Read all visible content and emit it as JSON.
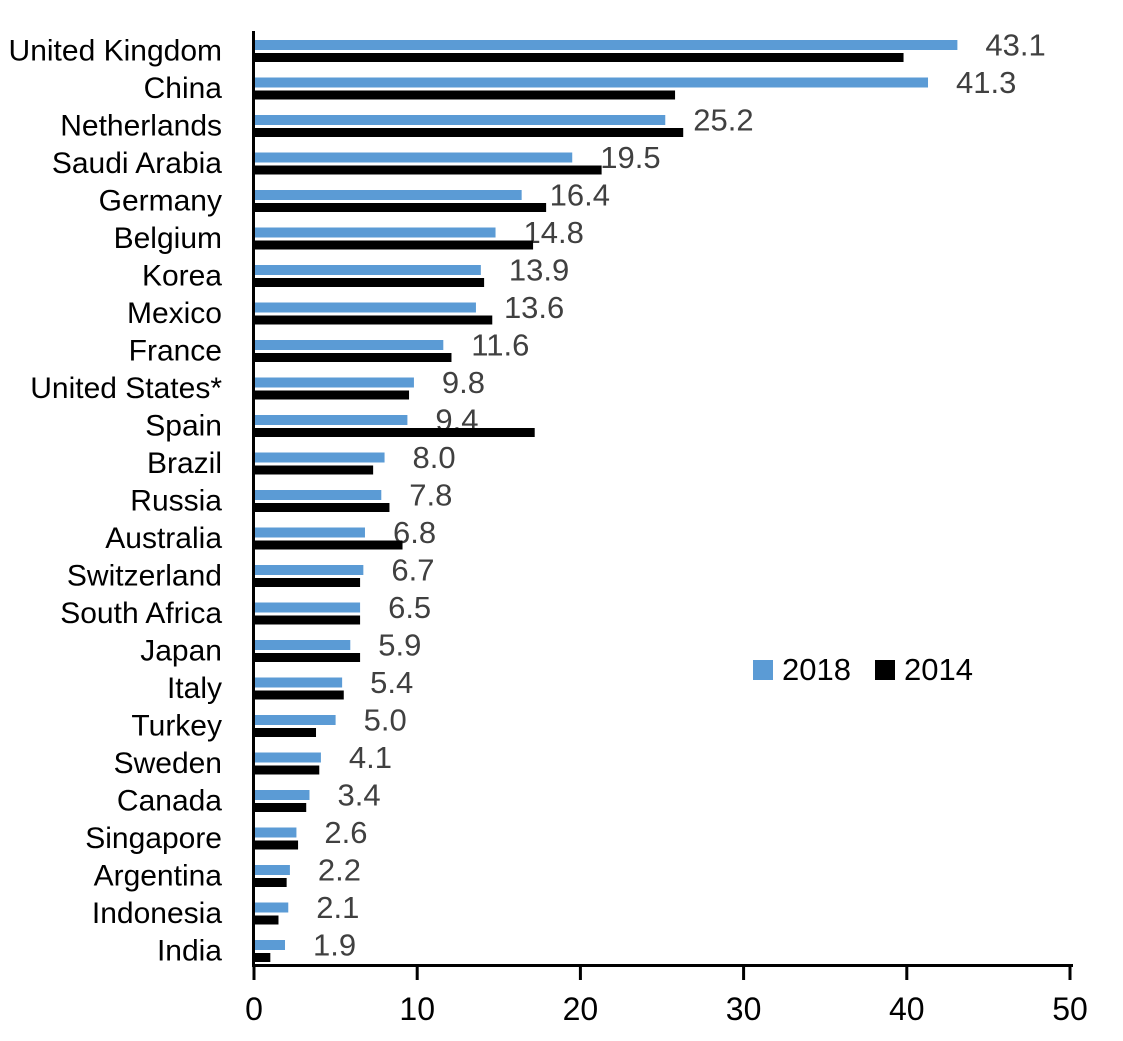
{
  "chart_data": {
    "type": "bar",
    "orientation": "horizontal",
    "title": "",
    "xlabel": "",
    "ylabel": "",
    "categories": [
      "United Kingdom",
      "China",
      "Netherlands",
      "Saudi Arabia",
      "Germany",
      "Belgium",
      "Korea",
      "Mexico",
      "France",
      "United States*",
      "Spain",
      "Brazil",
      "Russia",
      "Australia",
      "Switzerland",
      "South Africa",
      "Japan",
      "Italy",
      "Turkey",
      "Sweden",
      "Canada",
      "Singapore",
      "Argentina",
      "Indonesia",
      "India"
    ],
    "series": [
      {
        "name": "2018",
        "color": "#5B9BD5",
        "values": [
          43.1,
          41.3,
          25.2,
          19.5,
          16.4,
          14.8,
          13.9,
          13.6,
          11.6,
          9.8,
          9.4,
          8.0,
          7.8,
          6.8,
          6.7,
          6.5,
          5.9,
          5.4,
          5.0,
          4.1,
          3.4,
          2.6,
          2.2,
          2.1,
          1.9
        ],
        "data_labels": [
          "43.1",
          "41.3",
          "25.2",
          "19.5",
          "16.4",
          "14.8",
          "13.9",
          "13.6",
          "11.6",
          "9.8",
          "9.4",
          "8.0",
          "7.8",
          "6.8",
          "6.7",
          "6.5",
          "5.9",
          "5.4",
          "5.0",
          "4.1",
          "3.4",
          "2.6",
          "2.2",
          "2.1",
          "1.9"
        ]
      },
      {
        "name": "2014",
        "color": "#000000",
        "values": [
          39.8,
          25.8,
          26.3,
          21.3,
          17.9,
          17.1,
          14.1,
          14.6,
          12.1,
          9.5,
          17.2,
          7.3,
          8.3,
          9.1,
          6.5,
          6.5,
          6.5,
          5.5,
          3.8,
          4.0,
          3.2,
          2.7,
          2.0,
          1.5,
          1.0
        ]
      }
    ],
    "xlim": [
      0,
      50
    ],
    "x_ticks": [
      "0",
      "10",
      "20",
      "30",
      "40",
      "50"
    ],
    "grid": false,
    "legend_position": "middle-right",
    "value_label_color": "#404040",
    "axis_color": "#000000",
    "background_color": "#ffffff"
  }
}
